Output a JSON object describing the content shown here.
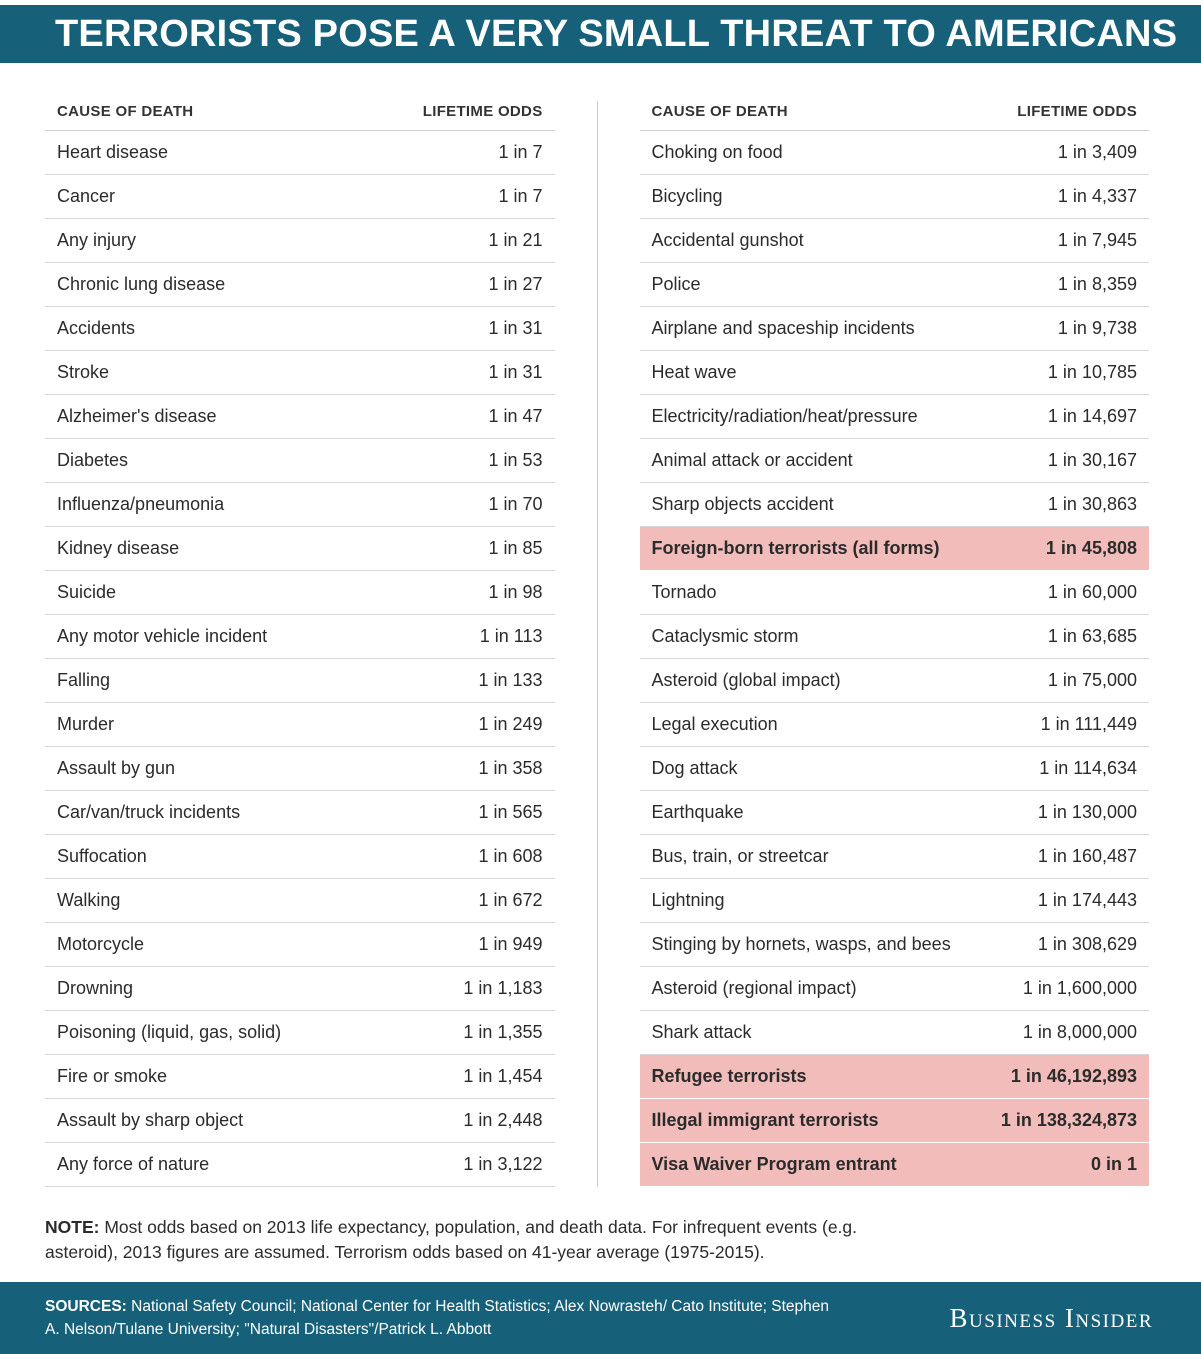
{
  "header": {
    "title": "TERRORISTS POSE A VERY SMALL THREAT TO AMERICANS"
  },
  "colors": {
    "teal_bar": "#16607A",
    "highlight_pink": "#F1BCB9",
    "row_border": "#D6D6D6",
    "text": "#2B2B2B",
    "header_text": "#FFFFFF"
  },
  "chart_data": {
    "type": "table",
    "title": "TERRORISTS POSE A VERY SMALL THREAT TO AMERICANS",
    "columns": {
      "cause": "CAUSE OF DEATH",
      "odds": "LIFETIME ODDS"
    },
    "left_table": {
      "rows": [
        {
          "cause": "Heart disease",
          "odds": "1 in 7",
          "highlight": false
        },
        {
          "cause": "Cancer",
          "odds": "1 in 7",
          "highlight": false
        },
        {
          "cause": "Any injury",
          "odds": "1 in 21",
          "highlight": false
        },
        {
          "cause": "Chronic lung disease",
          "odds": "1 in 27",
          "highlight": false
        },
        {
          "cause": "Accidents",
          "odds": "1 in 31",
          "highlight": false
        },
        {
          "cause": "Stroke",
          "odds": "1 in 31",
          "highlight": false
        },
        {
          "cause": "Alzheimer's disease",
          "odds": "1 in 47",
          "highlight": false
        },
        {
          "cause": "Diabetes",
          "odds": "1 in 53",
          "highlight": false
        },
        {
          "cause": "Influenza/pneumonia",
          "odds": "1 in 70",
          "highlight": false
        },
        {
          "cause": "Kidney disease",
          "odds": "1 in 85",
          "highlight": false
        },
        {
          "cause": "Suicide",
          "odds": "1 in 98",
          "highlight": false
        },
        {
          "cause": "Any motor vehicle incident",
          "odds": "1 in 113",
          "highlight": false
        },
        {
          "cause": "Falling",
          "odds": "1 in 133",
          "highlight": false
        },
        {
          "cause": "Murder",
          "odds": "1 in 249",
          "highlight": false
        },
        {
          "cause": "Assault by gun",
          "odds": "1 in 358",
          "highlight": false
        },
        {
          "cause": "Car/van/truck incidents",
          "odds": "1 in 565",
          "highlight": false
        },
        {
          "cause": "Suffocation",
          "odds": "1 in 608",
          "highlight": false
        },
        {
          "cause": "Walking",
          "odds": "1 in 672",
          "highlight": false
        },
        {
          "cause": "Motorcycle",
          "odds": "1 in 949",
          "highlight": false
        },
        {
          "cause": "Drowning",
          "odds": "1 in 1,183",
          "highlight": false
        },
        {
          "cause": "Poisoning (liquid, gas, solid)",
          "odds": "1 in 1,355",
          "highlight": false
        },
        {
          "cause": "Fire or smoke",
          "odds": "1 in 1,454",
          "highlight": false
        },
        {
          "cause": "Assault by sharp object",
          "odds": "1 in 2,448",
          "highlight": false
        },
        {
          "cause": "Any force of nature",
          "odds": "1 in 3,122",
          "highlight": false
        }
      ]
    },
    "right_table": {
      "rows": [
        {
          "cause": "Choking on food",
          "odds": "1 in 3,409",
          "highlight": false
        },
        {
          "cause": "Bicycling",
          "odds": "1 in 4,337",
          "highlight": false
        },
        {
          "cause": "Accidental gunshot",
          "odds": "1 in 7,945",
          "highlight": false
        },
        {
          "cause": "Police",
          "odds": "1 in 8,359",
          "highlight": false
        },
        {
          "cause": "Airplane and spaceship incidents",
          "odds": "1 in 9,738",
          "highlight": false
        },
        {
          "cause": "Heat wave",
          "odds": "1 in 10,785",
          "highlight": false
        },
        {
          "cause": "Electricity/radiation/heat/pressure",
          "odds": "1 in 14,697",
          "highlight": false
        },
        {
          "cause": "Animal attack or accident",
          "odds": "1 in 30,167",
          "highlight": false
        },
        {
          "cause": "Sharp objects accident",
          "odds": "1 in 30,863",
          "highlight": false
        },
        {
          "cause": "Foreign-born terrorists (all forms)",
          "odds": "1 in 45,808",
          "highlight": true
        },
        {
          "cause": "Tornado",
          "odds": "1 in 60,000",
          "highlight": false
        },
        {
          "cause": "Cataclysmic storm",
          "odds": "1 in 63,685",
          "highlight": false
        },
        {
          "cause": "Asteroid (global impact)",
          "odds": "1 in 75,000",
          "highlight": false
        },
        {
          "cause": "Legal execution",
          "odds": "1 in 111,449",
          "highlight": false
        },
        {
          "cause": "Dog attack",
          "odds": "1 in 114,634",
          "highlight": false
        },
        {
          "cause": "Earthquake",
          "odds": "1 in 130,000",
          "highlight": false
        },
        {
          "cause": "Bus, train, or streetcar",
          "odds": "1 in 160,487",
          "highlight": false
        },
        {
          "cause": "Lightning",
          "odds": "1 in 174,443",
          "highlight": false
        },
        {
          "cause": "Stinging by hornets, wasps, and bees",
          "odds": "1 in 308,629",
          "highlight": false
        },
        {
          "cause": "Asteroid (regional impact)",
          "odds": "1 in 1,600,000",
          "highlight": false
        },
        {
          "cause": "Shark attack",
          "odds": "1 in 8,000,000",
          "highlight": false
        },
        {
          "cause": "Refugee terrorists",
          "odds": "1 in 46,192,893",
          "highlight": true
        },
        {
          "cause": "Illegal immigrant terrorists",
          "odds": "1 in 138,324,873",
          "highlight": true
        },
        {
          "cause": "Visa Waiver Program entrant",
          "odds": "0 in 1",
          "highlight": true
        }
      ]
    }
  },
  "note": {
    "label": "NOTE:",
    "text": "Most odds based on 2013 life expectancy, population, and death data. For infrequent events (e.g. asteroid), 2013 figures are assumed. Terrorism odds based on 41-year average (1975-2015)."
  },
  "footer": {
    "sources_label": "SOURCES:",
    "sources_text": "National Safety Council; National Center for Health Statistics; Alex Nowrasteh/ Cato Institute; Stephen A. Nelson/Tulane University; \"Natural Disasters\"/Patrick L. Abbott",
    "brand": "Business Insider"
  }
}
